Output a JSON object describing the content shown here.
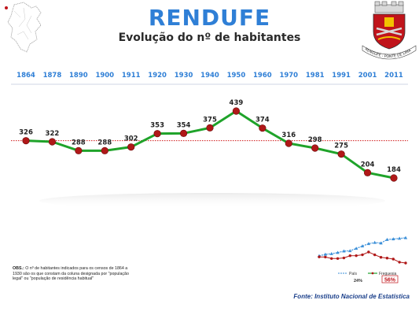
{
  "header": {
    "title": "RENDUFE",
    "subtitle": "Evolução do nº de habitantes"
  },
  "emblem": {
    "caption": "RENDUFE - PONTE DE LIMA",
    "colors": {
      "field": "#c0141b",
      "accent": "#f2c200",
      "silver": "#d9d9d9"
    }
  },
  "chart_data": {
    "type": "line",
    "categories": [
      "1864",
      "1878",
      "1890",
      "1900",
      "1911",
      "1920",
      "1930",
      "1940",
      "1950",
      "1960",
      "1970",
      "1981",
      "1991",
      "2001",
      "2011"
    ],
    "values": [
      326,
      322,
      288,
      288,
      302,
      353,
      354,
      375,
      439,
      374,
      316,
      298,
      275,
      204,
      184
    ],
    "reference_line": 326,
    "line_color": "#1fa32a",
    "marker_color": "#b01818",
    "reference_color": "#d11a1a",
    "year_label_color": "#2f7fd6"
  },
  "mini_chart": {
    "legend": {
      "pais": "País",
      "freguesia": "Freguesia"
    },
    "pais_pct": "24%",
    "freguesia_pct": "56%",
    "colors": {
      "pais": "#3a8fd8",
      "freguesia": "#b01818"
    },
    "pais_values": [
      43,
      48,
      50,
      54,
      59,
      60,
      68,
      76,
      84,
      88,
      86,
      98,
      100,
      102,
      104
    ],
    "freguesia_values": [
      326,
      322,
      288,
      288,
      302,
      353,
      354,
      375,
      439,
      374,
      316,
      298,
      275,
      204,
      184
    ]
  },
  "obs": {
    "prefix": "OBS.:",
    "text": "O nº de habitantes indicados para os censos de 1864 a 1930 são os que constam da coluna designada por \"população legal\" ou \"população de residência habitual\""
  },
  "source": "Fonte: Instituto Nacional de Estatística"
}
